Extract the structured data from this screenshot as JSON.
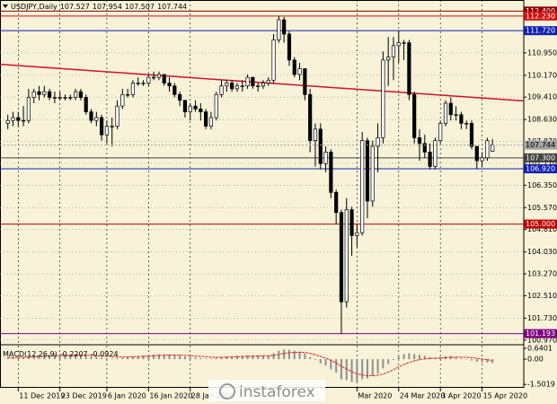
{
  "chart_data": {
    "type": "candlestick",
    "title": "USDJPY,Daily",
    "watermark": "instaforex",
    "xlim": [
      -1.5,
      99
    ],
    "ylim": [
      100.9,
      112.63
    ],
    "grid": true,
    "up_color": "#ffffff",
    "down_color": "#000000",
    "wick_color": "#000000",
    "xticks": [
      {
        "value": 2,
        "label": "11 Dec 2019"
      },
      {
        "value": 10,
        "label": "23 Dec 2019"
      },
      {
        "value": 19,
        "label": "6 Jan 2020"
      },
      {
        "value": 27,
        "label": "16 Jan 2020"
      },
      {
        "value": 35,
        "label": "28 Jan 2020"
      },
      {
        "value": 67,
        "label": "Mar 2020"
      },
      {
        "value": 75,
        "label": "24 Mar 2020"
      },
      {
        "value": 83,
        "label": "3 Apr 2020"
      },
      {
        "value": 91,
        "label": "15 Apr 2020"
      }
    ],
    "yticks": [
      {
        "value": 110.95,
        "label": "110.950"
      },
      {
        "value": 110.17,
        "label": "110.170"
      },
      {
        "value": 109.41,
        "label": "109.410"
      },
      {
        "value": 108.63,
        "label": "108.630"
      },
      {
        "value": 107.87,
        "label": "107.870"
      },
      {
        "value": 107.11,
        "label": "107.110"
      },
      {
        "value": 106.35,
        "label": "106.350"
      },
      {
        "value": 105.57,
        "label": "105.570"
      },
      {
        "value": 104.81,
        "label": "104.810"
      },
      {
        "value": 104.03,
        "label": "104.030"
      },
      {
        "value": 103.27,
        "label": "103.270"
      },
      {
        "value": 102.51,
        "label": "102.510"
      },
      {
        "value": 101.73,
        "label": "101.730"
      },
      {
        "value": 100.97,
        "label": "100.970"
      }
    ],
    "levels": [
      {
        "value": 112.4,
        "label": "112.400",
        "color": "#8b0000"
      },
      {
        "value": 112.23,
        "label": "112.230",
        "color": "#d01010"
      },
      {
        "value": 111.72,
        "label": "111.720",
        "color": "#1020b0"
      },
      {
        "value": 107.3,
        "label": "107.300",
        "color": "#404040"
      },
      {
        "value": 106.92,
        "label": "106.920",
        "color": "#1020b0"
      },
      {
        "value": 105.0,
        "label": "105.000",
        "color": "#c00000"
      },
      {
        "value": 101.193,
        "label": "101.193",
        "color": "#800080"
      }
    ],
    "current_color": "#a0a0a0",
    "trendline": {
      "color": "#d01030",
      "x": [
        -1.5,
        99
      ],
      "y": [
        110.55,
        109.28
      ]
    },
    "candles": [
      [
        108.5,
        108.8,
        108.3,
        108.6
      ],
      [
        108.6,
        108.9,
        108.4,
        108.7
      ],
      [
        108.7,
        108.9,
        108.4,
        108.6
      ],
      [
        108.6,
        109.1,
        108.4,
        108.6
      ],
      [
        108.6,
        109.7,
        108.5,
        109.4
      ],
      [
        109.4,
        109.7,
        109.2,
        109.6
      ],
      [
        109.6,
        109.8,
        109.3,
        109.5
      ],
      [
        109.5,
        109.8,
        109.4,
        109.6
      ],
      [
        109.6,
        109.7,
        109.3,
        109.4
      ],
      [
        109.4,
        109.6,
        109.2,
        109.4
      ],
      [
        109.4,
        109.6,
        109.3,
        109.4
      ],
      [
        109.4,
        109.5,
        109.3,
        109.4
      ],
      [
        109.4,
        109.5,
        109.3,
        109.4
      ],
      [
        109.4,
        109.7,
        109.3,
        109.6
      ],
      [
        109.6,
        109.7,
        109.3,
        109.4
      ],
      [
        109.4,
        109.5,
        108.8,
        108.9
      ],
      [
        108.9,
        109.0,
        108.5,
        108.6
      ],
      [
        108.6,
        108.9,
        108.4,
        108.7
      ],
      [
        108.7,
        108.8,
        107.9,
        108.1
      ],
      [
        108.1,
        108.6,
        107.8,
        108.4
      ],
      [
        108.4,
        108.7,
        107.7,
        108.4
      ],
      [
        108.4,
        109.3,
        108.3,
        109.1
      ],
      [
        109.1,
        109.7,
        109.0,
        109.5
      ],
      [
        109.5,
        109.7,
        109.4,
        109.5
      ],
      [
        109.5,
        110.0,
        109.4,
        109.9
      ],
      [
        109.9,
        110.1,
        109.8,
        109.9
      ],
      [
        109.9,
        110.0,
        109.8,
        109.9
      ],
      [
        109.9,
        110.2,
        109.8,
        110.1
      ],
      [
        110.1,
        110.3,
        110.0,
        110.1
      ],
      [
        110.1,
        110.3,
        110.0,
        110.2
      ],
      [
        110.2,
        110.2,
        109.8,
        109.9
      ],
      [
        109.9,
        110.1,
        109.6,
        109.8
      ],
      [
        109.8,
        109.9,
        109.4,
        109.5
      ],
      [
        109.5,
        109.6,
        109.1,
        109.3
      ],
      [
        109.3,
        109.3,
        108.7,
        108.9
      ],
      [
        108.9,
        109.2,
        108.6,
        109.1
      ],
      [
        109.1,
        109.3,
        108.9,
        109.0
      ],
      [
        109.0,
        109.2,
        108.6,
        108.9
      ],
      [
        108.9,
        109.0,
        108.3,
        108.4
      ],
      [
        108.4,
        108.9,
        108.3,
        108.7
      ],
      [
        108.7,
        109.6,
        108.6,
        109.5
      ],
      [
        109.5,
        110.0,
        109.4,
        109.8
      ],
      [
        109.8,
        110.0,
        109.6,
        109.9
      ],
      [
        109.9,
        110.0,
        109.6,
        109.7
      ],
      [
        109.7,
        109.9,
        109.6,
        109.8
      ],
      [
        109.8,
        110.0,
        109.6,
        109.8
      ],
      [
        109.8,
        110.2,
        109.7,
        110.1
      ],
      [
        110.1,
        110.1,
        109.7,
        109.8
      ],
      [
        109.8,
        109.9,
        109.6,
        109.8
      ],
      [
        109.8,
        110.0,
        109.7,
        109.9
      ],
      [
        109.9,
        110.1,
        109.8,
        110.0
      ],
      [
        110.0,
        111.6,
        109.9,
        111.4
      ],
      [
        111.4,
        112.23,
        111.3,
        112.1
      ],
      [
        112.1,
        112.2,
        111.3,
        111.6
      ],
      [
        111.6,
        111.7,
        110.5,
        110.7
      ],
      [
        110.7,
        110.8,
        110.1,
        110.2
      ],
      [
        110.2,
        110.6,
        110.0,
        110.4
      ],
      [
        110.4,
        110.4,
        109.3,
        109.5
      ],
      [
        109.5,
        109.7,
        107.5,
        107.9
      ],
      [
        107.9,
        108.5,
        107.0,
        108.3
      ],
      [
        108.3,
        108.5,
        106.9,
        107.1
      ],
      [
        107.1,
        107.7,
        106.8,
        107.5
      ],
      [
        107.5,
        107.6,
        105.9,
        106.1
      ],
      [
        106.1,
        106.2,
        105.0,
        105.4
      ],
      [
        105.4,
        105.5,
        101.193,
        102.3
      ],
      [
        102.3,
        105.9,
        102.1,
        105.5
      ],
      [
        105.5,
        105.6,
        103.9,
        104.6
      ],
      [
        104.6,
        105.0,
        104.2,
        104.7
      ],
      [
        104.7,
        108.2,
        104.6,
        107.9
      ],
      [
        107.9,
        108.0,
        105.2,
        105.8
      ],
      [
        105.8,
        107.9,
        105.6,
        107.7
      ],
      [
        107.7,
        108.5,
        106.8,
        108.0
      ],
      [
        108.0,
        111.0,
        107.8,
        110.7
      ],
      [
        110.7,
        111.5,
        109.8,
        110.8
      ],
      [
        110.8,
        111.5,
        110.0,
        111.2
      ],
      [
        111.2,
        111.72,
        110.6,
        111.3
      ],
      [
        111.3,
        111.4,
        110.7,
        111.3
      ],
      [
        111.3,
        111.4,
        109.3,
        109.5
      ],
      [
        109.5,
        109.6,
        107.8,
        108.0
      ],
      [
        108.0,
        108.3,
        107.2,
        107.8
      ],
      [
        107.8,
        108.1,
        107.3,
        107.5
      ],
      [
        107.5,
        107.8,
        106.9,
        107.0
      ],
      [
        107.0,
        108.0,
        106.9,
        107.9
      ],
      [
        107.9,
        108.6,
        107.8,
        108.5
      ],
      [
        108.5,
        109.3,
        108.4,
        109.2
      ],
      [
        109.2,
        109.4,
        108.6,
        108.8
      ],
      [
        108.8,
        109.1,
        108.6,
        108.8
      ],
      [
        108.8,
        108.9,
        108.3,
        108.5
      ],
      [
        108.5,
        108.6,
        108.3,
        108.5
      ],
      [
        108.5,
        108.6,
        107.6,
        107.7
      ],
      [
        107.7,
        107.7,
        106.92,
        107.2
      ],
      [
        107.2,
        107.5,
        107.0,
        107.3
      ],
      [
        107.3,
        108.0,
        107.2,
        107.9
      ],
      [
        107.527,
        107.954,
        107.507,
        107.744
      ]
    ],
    "macd": {
      "name": "MACD(12,26,9)",
      "ylim": [
        -1.6,
        0.75
      ],
      "yticks": [
        0.6401,
        {
          "value": 0,
          "label": "0.00"
        },
        -1.5019
      ],
      "hist_color": "#909090",
      "signal_color": "#e02020",
      "histogram": [
        0.1,
        0.12,
        0.13,
        0.13,
        0.18,
        0.22,
        0.25,
        0.27,
        0.28,
        0.28,
        0.28,
        0.28,
        0.27,
        0.27,
        0.26,
        0.22,
        0.18,
        0.15,
        0.1,
        0.07,
        0.05,
        0.06,
        0.09,
        0.12,
        0.16,
        0.19,
        0.22,
        0.25,
        0.27,
        0.29,
        0.29,
        0.28,
        0.25,
        0.21,
        0.16,
        0.13,
        0.1,
        0.07,
        0.03,
        0.03,
        0.07,
        0.12,
        0.16,
        0.18,
        0.2,
        0.21,
        0.23,
        0.23,
        0.23,
        0.23,
        0.24,
        0.35,
        0.5,
        0.58,
        0.56,
        0.5,
        0.45,
        0.33,
        0.1,
        -0.05,
        -0.25,
        -0.38,
        -0.6,
        -0.8,
        -1.2,
        -1.25,
        -1.35,
        -1.4,
        -1.2,
        -1.15,
        -1.0,
        -0.85,
        -0.55,
        -0.3,
        -0.05,
        0.15,
        0.3,
        0.35,
        0.3,
        0.25,
        0.2,
        0.12,
        0.1,
        0.12,
        0.18,
        0.2,
        0.1,
        0.05,
        0.0,
        -0.08,
        -0.15,
        -0.19,
        -0.2,
        -0.2207
      ],
      "signal": [
        0.1,
        0.1,
        0.11,
        0.11,
        0.12,
        0.13,
        0.15,
        0.17,
        0.19,
        0.2,
        0.21,
        0.22,
        0.23,
        0.24,
        0.24,
        0.24,
        0.23,
        0.22,
        0.2,
        0.18,
        0.16,
        0.14,
        0.13,
        0.13,
        0.14,
        0.15,
        0.16,
        0.18,
        0.2,
        0.22,
        0.23,
        0.24,
        0.24,
        0.24,
        0.23,
        0.21,
        0.19,
        0.17,
        0.14,
        0.12,
        0.11,
        0.11,
        0.12,
        0.13,
        0.14,
        0.15,
        0.17,
        0.18,
        0.19,
        0.2,
        0.2,
        0.23,
        0.28,
        0.34,
        0.38,
        0.4,
        0.41,
        0.4,
        0.34,
        0.26,
        0.16,
        0.06,
        -0.08,
        -0.23,
        -0.42,
        -0.59,
        -0.75,
        -0.88,
        -0.94,
        -0.98,
        -0.98,
        -0.96,
        -0.88,
        -0.77,
        -0.63,
        -0.47,
        -0.32,
        -0.2,
        -0.1,
        -0.03,
        0.02,
        0.04,
        0.05,
        0.07,
        0.09,
        0.11,
        0.12,
        0.12,
        0.11,
        0.09,
        0.05,
        0.01,
        -0.03,
        -0.0924
      ]
    }
  }
}
